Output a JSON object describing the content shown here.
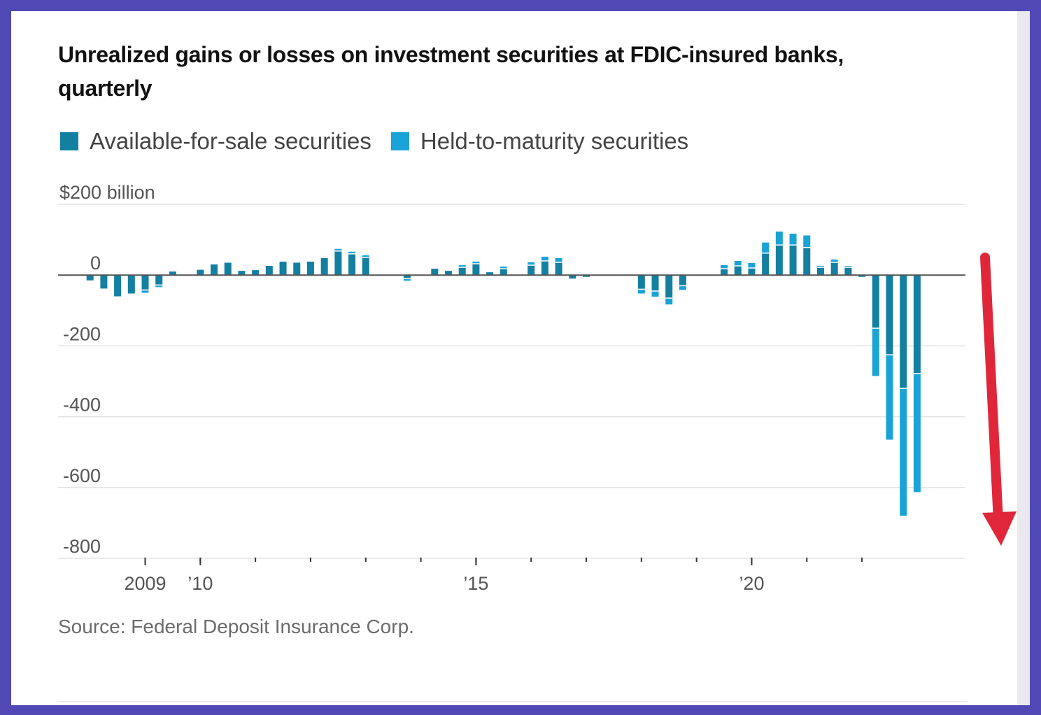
{
  "title": "Unrealized gains or losses on investment securities at FDIC-insured banks, quarterly",
  "legend": [
    {
      "label": "Available-for-sale securities",
      "color": "#137fa1"
    },
    {
      "label": "Held-to-maturity securities",
      "color": "#1aa3d6"
    }
  ],
  "source": "Source: Federal Deposit Insurance Corp.",
  "annotation": {
    "type": "arrow",
    "direction": "down",
    "color": "#e0273a"
  },
  "chart_data": {
    "type": "bar",
    "stacked": true,
    "yunit_label": "$200 billion",
    "ylim": [
      -800,
      200
    ],
    "yticks": [
      {
        "value": 200,
        "label": "$200 billion"
      },
      {
        "value": 0,
        "label": "0"
      },
      {
        "value": -200,
        "label": "-200"
      },
      {
        "value": -400,
        "label": "-400"
      },
      {
        "value": -600,
        "label": "-600"
      },
      {
        "value": -800,
        "label": "-800"
      }
    ],
    "xlim": [
      2007.75,
      2023.75
    ],
    "xticks": [
      {
        "value": 2009,
        "label": "2009"
      },
      {
        "value": 2010,
        "label": "’10"
      },
      {
        "value": 2015,
        "label": "’15"
      },
      {
        "value": 2020,
        "label": "’20"
      }
    ],
    "minor_xticks": [
      2009,
      2010,
      2011,
      2012,
      2013,
      2014,
      2015,
      2016,
      2017,
      2018,
      2019,
      2020,
      2021,
      2022
    ],
    "x_labels_note": "quarters",
    "grid": true,
    "legend_position": "top-left",
    "series": [
      {
        "name": "Available-for-sale securities",
        "color": "#137fa1",
        "data": [
          {
            "x": "2008Q1",
            "y": -15
          },
          {
            "x": "2008Q2",
            "y": -38
          },
          {
            "x": "2008Q3",
            "y": -60
          },
          {
            "x": "2008Q4",
            "y": -52
          },
          {
            "x": "2009Q1",
            "y": -42
          },
          {
            "x": "2009Q2",
            "y": -28
          },
          {
            "x": "2009Q3",
            "y": 10
          },
          {
            "x": "2010Q1",
            "y": 15
          },
          {
            "x": "2010Q2",
            "y": 30
          },
          {
            "x": "2010Q3",
            "y": 35
          },
          {
            "x": "2010Q4",
            "y": 12
          },
          {
            "x": "2011Q1",
            "y": 14
          },
          {
            "x": "2011Q2",
            "y": 26
          },
          {
            "x": "2011Q3",
            "y": 38
          },
          {
            "x": "2011Q4",
            "y": 35
          },
          {
            "x": "2012Q1",
            "y": 38
          },
          {
            "x": "2012Q2",
            "y": 48
          },
          {
            "x": "2012Q3",
            "y": 68
          },
          {
            "x": "2012Q4",
            "y": 60
          },
          {
            "x": "2013Q1",
            "y": 50
          },
          {
            "x": "2013Q4",
            "y": -10
          },
          {
            "x": "2014Q2",
            "y": 18
          },
          {
            "x": "2014Q3",
            "y": 12
          },
          {
            "x": "2014Q4",
            "y": 22
          },
          {
            "x": "2015Q1",
            "y": 32
          },
          {
            "x": "2015Q2",
            "y": 8
          },
          {
            "x": "2015Q3",
            "y": 18
          },
          {
            "x": "2016Q1",
            "y": 28
          },
          {
            "x": "2016Q2",
            "y": 40
          },
          {
            "x": "2016Q3",
            "y": 36
          },
          {
            "x": "2016Q4",
            "y": -10
          },
          {
            "x": "2017Q1",
            "y": -5
          },
          {
            "x": "2018Q1",
            "y": -40
          },
          {
            "x": "2018Q2",
            "y": -45
          },
          {
            "x": "2018Q3",
            "y": -65
          },
          {
            "x": "2018Q4",
            "y": -30
          },
          {
            "x": "2019Q3",
            "y": 18
          },
          {
            "x": "2019Q4",
            "y": 26
          },
          {
            "x": "2020Q1",
            "y": 20
          },
          {
            "x": "2020Q2",
            "y": 62
          },
          {
            "x": "2020Q3",
            "y": 85
          },
          {
            "x": "2020Q4",
            "y": 85
          },
          {
            "x": "2021Q1",
            "y": 78
          },
          {
            "x": "2021Q2",
            "y": 22
          },
          {
            "x": "2021Q3",
            "y": 36
          },
          {
            "x": "2021Q4",
            "y": 22
          },
          {
            "x": "2022Q1",
            "y": -5
          },
          {
            "x": "2022Q2",
            "y": -150
          },
          {
            "x": "2022Q3",
            "y": -225
          },
          {
            "x": "2022Q4",
            "y": -320
          },
          {
            "x": "2023Q1",
            "y": -278
          }
        ]
      },
      {
        "name": "Held-to-maturity securities",
        "color": "#1aa3d6",
        "data": [
          {
            "x": "2008Q1",
            "y": 0
          },
          {
            "x": "2008Q2",
            "y": 0
          },
          {
            "x": "2008Q3",
            "y": 0
          },
          {
            "x": "2008Q4",
            "y": 0
          },
          {
            "x": "2009Q1",
            "y": -8
          },
          {
            "x": "2009Q2",
            "y": -6
          },
          {
            "x": "2009Q3",
            "y": 0
          },
          {
            "x": "2010Q1",
            "y": 0
          },
          {
            "x": "2010Q2",
            "y": 0
          },
          {
            "x": "2010Q3",
            "y": 0
          },
          {
            "x": "2010Q4",
            "y": 0
          },
          {
            "x": "2011Q1",
            "y": 0
          },
          {
            "x": "2011Q2",
            "y": 0
          },
          {
            "x": "2011Q3",
            "y": 0
          },
          {
            "x": "2011Q4",
            "y": 0
          },
          {
            "x": "2012Q1",
            "y": 0
          },
          {
            "x": "2012Q2",
            "y": 0
          },
          {
            "x": "2012Q3",
            "y": 6
          },
          {
            "x": "2012Q4",
            "y": 6
          },
          {
            "x": "2013Q1",
            "y": 6
          },
          {
            "x": "2013Q4",
            "y": -6
          },
          {
            "x": "2014Q2",
            "y": 0
          },
          {
            "x": "2014Q3",
            "y": 0
          },
          {
            "x": "2014Q4",
            "y": 6
          },
          {
            "x": "2015Q1",
            "y": 6
          },
          {
            "x": "2015Q2",
            "y": 0
          },
          {
            "x": "2015Q3",
            "y": 6
          },
          {
            "x": "2016Q1",
            "y": 8
          },
          {
            "x": "2016Q2",
            "y": 12
          },
          {
            "x": "2016Q3",
            "y": 12
          },
          {
            "x": "2016Q4",
            "y": 0
          },
          {
            "x": "2017Q1",
            "y": 0
          },
          {
            "x": "2018Q1",
            "y": -12
          },
          {
            "x": "2018Q2",
            "y": -16
          },
          {
            "x": "2018Q3",
            "y": -18
          },
          {
            "x": "2018Q4",
            "y": -12
          },
          {
            "x": "2019Q3",
            "y": 10
          },
          {
            "x": "2019Q4",
            "y": 14
          },
          {
            "x": "2020Q1",
            "y": 14
          },
          {
            "x": "2020Q2",
            "y": 30
          },
          {
            "x": "2020Q3",
            "y": 38
          },
          {
            "x": "2020Q4",
            "y": 32
          },
          {
            "x": "2021Q1",
            "y": 34
          },
          {
            "x": "2021Q2",
            "y": 4
          },
          {
            "x": "2021Q3",
            "y": 8
          },
          {
            "x": "2021Q4",
            "y": 4
          },
          {
            "x": "2022Q1",
            "y": 0
          },
          {
            "x": "2022Q2",
            "y": -135
          },
          {
            "x": "2022Q3",
            "y": -240
          },
          {
            "x": "2022Q4",
            "y": -360
          },
          {
            "x": "2023Q1",
            "y": -335
          }
        ]
      }
    ]
  }
}
